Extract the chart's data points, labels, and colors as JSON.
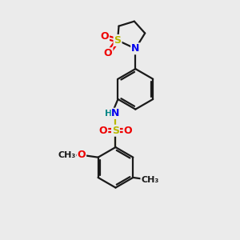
{
  "bg_color": "#ebebeb",
  "bond_color": "#1a1a1a",
  "S_color": "#b8b800",
  "N_color": "#0000ee",
  "O_color": "#ee0000",
  "H_color": "#008888",
  "line_width": 1.6,
  "font_size": 9,
  "font_size_small": 8,
  "figsize": [
    3.0,
    3.0
  ],
  "dpi": 100,
  "xlim": [
    0,
    10
  ],
  "ylim": [
    0,
    10
  ]
}
